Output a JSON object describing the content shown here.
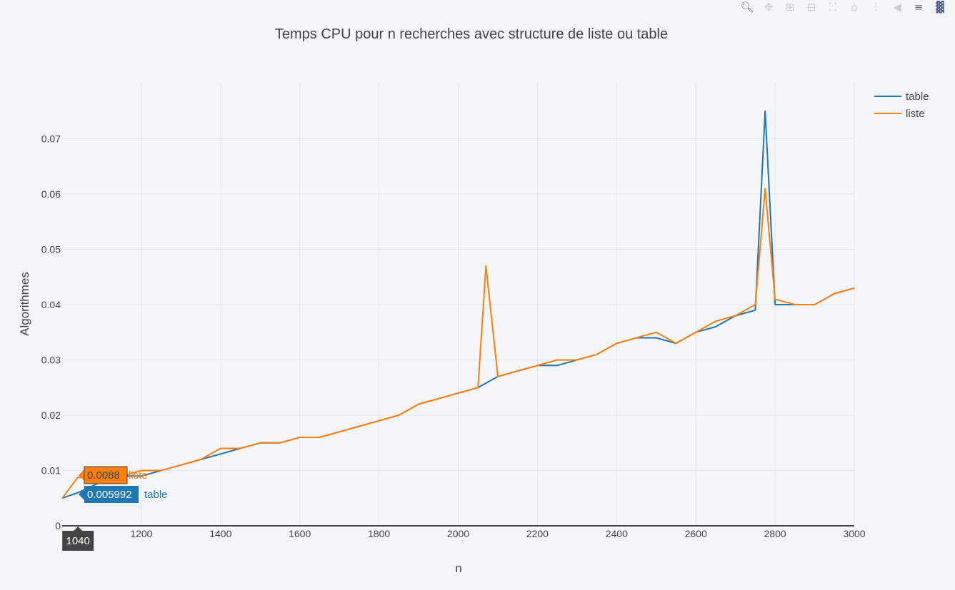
{
  "modebar": {
    "icons": [
      "zoom-icon",
      "pan-icon",
      "zoom-in-icon",
      "zoom-out-icon",
      "autoscale-icon",
      "home-icon",
      "spike-lines-icon",
      "hover-closest-icon",
      "hover-compare-icon",
      "plotly-logo-icon"
    ]
  },
  "chart_data": {
    "type": "line",
    "title": "Temps CPU pour n recherches avec structure de liste ou table",
    "xlabel": "n",
    "ylabel": "Algorithmes",
    "xlim": [
      1000,
      3000
    ],
    "ylim": [
      0,
      0.08
    ],
    "x_ticks": [
      "1040",
      "1200",
      "1400",
      "1600",
      "1800",
      "2000",
      "2200",
      "2400",
      "2600",
      "2800",
      "3000"
    ],
    "x_tick_values": [
      1040,
      1200,
      1400,
      1600,
      1800,
      2000,
      2200,
      2400,
      2600,
      2800,
      3000
    ],
    "y_ticks": [
      "0",
      "0.01",
      "0.02",
      "0.03",
      "0.04",
      "0.05",
      "0.06",
      "0.07"
    ],
    "y_tick_values": [
      0,
      0.01,
      0.02,
      0.03,
      0.04,
      0.05,
      0.06,
      0.07
    ],
    "grid": true,
    "legend_position": "top-right",
    "hover_x": "1040",
    "series": [
      {
        "name": "table",
        "color": "#1f77b4",
        "hover_value": "0.005992",
        "x": [
          1000,
          1040,
          1100,
          1150,
          1200,
          1250,
          1300,
          1350,
          1400,
          1450,
          1500,
          1550,
          1600,
          1650,
          1700,
          1750,
          1800,
          1850,
          1900,
          1950,
          2000,
          2050,
          2100,
          2150,
          2200,
          2250,
          2300,
          2350,
          2400,
          2450,
          2500,
          2550,
          2600,
          2650,
          2700,
          2750,
          2775,
          2800,
          2850,
          2900,
          2950,
          3000
        ],
        "y": [
          0.005,
          0.006,
          0.008,
          0.009,
          0.009,
          0.01,
          0.011,
          0.012,
          0.013,
          0.014,
          0.015,
          0.015,
          0.016,
          0.016,
          0.017,
          0.018,
          0.019,
          0.02,
          0.022,
          0.023,
          0.024,
          0.025,
          0.027,
          0.028,
          0.029,
          0.029,
          0.03,
          0.031,
          0.033,
          0.034,
          0.034,
          0.033,
          0.035,
          0.036,
          0.038,
          0.039,
          0.075,
          0.04,
          0.04,
          0.04,
          0.042,
          0.043
        ]
      },
      {
        "name": "liste",
        "color": "#ff7f0e",
        "hover_value": "0.0088",
        "x": [
          1000,
          1040,
          1100,
          1150,
          1200,
          1250,
          1300,
          1350,
          1400,
          1450,
          1500,
          1550,
          1600,
          1650,
          1700,
          1750,
          1800,
          1850,
          1900,
          1950,
          2000,
          2050,
          2070,
          2100,
          2150,
          2200,
          2250,
          2300,
          2350,
          2400,
          2450,
          2500,
          2550,
          2600,
          2650,
          2700,
          2750,
          2775,
          2800,
          2850,
          2900,
          2950,
          3000
        ],
        "y": [
          0.005,
          0.0088,
          0.008,
          0.009,
          0.01,
          0.01,
          0.011,
          0.012,
          0.014,
          0.014,
          0.015,
          0.015,
          0.016,
          0.016,
          0.017,
          0.018,
          0.019,
          0.02,
          0.022,
          0.023,
          0.024,
          0.025,
          0.047,
          0.027,
          0.028,
          0.029,
          0.03,
          0.03,
          0.031,
          0.033,
          0.034,
          0.035,
          0.033,
          0.035,
          0.037,
          0.038,
          0.04,
          0.061,
          0.041,
          0.04,
          0.04,
          0.042,
          0.043
        ]
      }
    ]
  }
}
